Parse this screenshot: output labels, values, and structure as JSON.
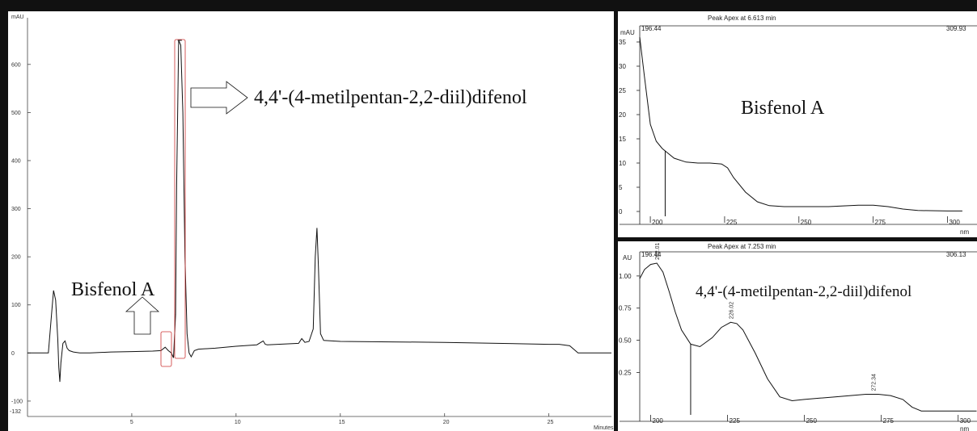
{
  "chart_data": [
    {
      "type": "line",
      "title": "",
      "ylabel": "mAU",
      "xlabel": "Minutes",
      "xlim": [
        0,
        28
      ],
      "ylim": [
        -132,
        650
      ],
      "yticks": [
        -100,
        0,
        100,
        200,
        300,
        400,
        500,
        600
      ],
      "xticks": [
        5,
        10,
        15,
        20,
        25
      ],
      "ytick_labels": [
        "-100",
        "0",
        "100",
        "200",
        "300",
        "400",
        "500",
        "600"
      ],
      "xtick_labels": [
        "5",
        "10",
        "15",
        "20",
        "25"
      ],
      "ymin_label": "-132",
      "series": [
        {
          "x": [
            0,
            1.0,
            1.15,
            1.25,
            1.35,
            1.45,
            1.5,
            1.55,
            1.6,
            1.7,
            1.8,
            1.9,
            2.0,
            2.2,
            2.5,
            3,
            4,
            5,
            6,
            6.4,
            6.6,
            6.75,
            6.9,
            7.0,
            7.1,
            7.15,
            7.25,
            7.35,
            7.45,
            7.55,
            7.65,
            7.75,
            7.85,
            8.0,
            8.2,
            9,
            10,
            11,
            11.3,
            11.4,
            11.5,
            12,
            13,
            13.15,
            13.3,
            13.5,
            13.7,
            13.8,
            13.88,
            13.95,
            14.05,
            14.2,
            15,
            20,
            25,
            25.5,
            26,
            26.4,
            28
          ],
          "y": [
            0,
            0,
            80,
            130,
            110,
            30,
            -30,
            -60,
            -20,
            20,
            25,
            10,
            5,
            2,
            0,
            0,
            2,
            3,
            4,
            5,
            12,
            5,
            0,
            -10,
            80,
            350,
            650,
            640,
            500,
            200,
            40,
            0,
            -8,
            5,
            8,
            10,
            14,
            17,
            25,
            18,
            17,
            18,
            20,
            30,
            22,
            24,
            50,
            200,
            260,
            180,
            40,
            26,
            24,
            22,
            18,
            18,
            15,
            0,
            0
          ]
        }
      ]
    },
    {
      "type": "line",
      "title": "Peak Apex at 6.613 min",
      "ylabel": "mAU",
      "xlabel": "nm",
      "xlim": [
        196.44,
        309.93
      ],
      "ylim": [
        -1,
        37
      ],
      "xlim_labels": [
        "196.44",
        "309.93"
      ],
      "yticks": [
        0,
        5,
        10,
        15,
        20,
        25,
        30,
        35
      ],
      "xticks": [
        200,
        225,
        250,
        275,
        300
      ],
      "ytick_labels": [
        "0",
        "5",
        "10",
        "15",
        "20",
        "25",
        "30",
        "35"
      ],
      "xtick_labels": [
        "200",
        "225",
        "250",
        "275",
        "300"
      ],
      "series": [
        {
          "x": [
            196.44,
            198,
            200,
            202,
            204,
            206,
            208,
            212,
            216,
            220,
            224,
            226,
            228,
            232,
            236,
            240,
            245,
            250,
            260,
            270,
            275,
            280,
            285,
            290,
            300,
            305
          ],
          "y": [
            36,
            28,
            18,
            14.5,
            13,
            12,
            11,
            10.2,
            10,
            10,
            9.8,
            9,
            7,
            4,
            2,
            1.2,
            1,
            1,
            1,
            1.3,
            1.3,
            1.0,
            0.5,
            0.2,
            0.1,
            0.1
          ]
        }
      ],
      "annotation": "Bisfenol A"
    },
    {
      "type": "line",
      "title": "Peak Apex at 7.253 min",
      "ylabel": "AU",
      "xlabel": "nm",
      "xlim": [
        196.44,
        306.13
      ],
      "ylim": [
        -0.08,
        1.15
      ],
      "xlim_labels": [
        "196.44",
        "306.13"
      ],
      "yticks": [
        0.25,
        0.5,
        0.75,
        1.0
      ],
      "xticks": [
        200,
        225,
        250,
        275,
        300
      ],
      "ytick_labels": [
        "0.25",
        "0.50",
        "0.75",
        "1.00"
      ],
      "xtick_labels": [
        "200",
        "225",
        "250",
        "275",
        "300"
      ],
      "peak_labels": [
        "202.01",
        "226.02",
        "272.34"
      ],
      "series": [
        {
          "x": [
            196.44,
            198,
            200,
            202,
            204,
            206,
            208,
            210,
            213,
            216,
            220,
            223,
            226,
            228,
            230,
            234,
            238,
            242,
            246,
            250,
            255,
            260,
            265,
            270,
            274,
            278,
            282,
            285,
            288,
            306
          ],
          "y": [
            0.98,
            1.05,
            1.09,
            1.1,
            1.03,
            0.88,
            0.72,
            0.58,
            0.47,
            0.45,
            0.52,
            0.6,
            0.64,
            0.63,
            0.58,
            0.4,
            0.2,
            0.06,
            0.03,
            0.04,
            0.05,
            0.06,
            0.07,
            0.08,
            0.08,
            0.07,
            0.04,
            -0.02,
            -0.05,
            -0.05
          ]
        }
      ],
      "annotation": "4,4'-(4-metilpentan-2,2-diil)difenol"
    }
  ],
  "annotations": {
    "main_compound": "4,4'-(4-metilpentan-2,2-diil)difenol",
    "bisfenol": "Bisfenol A"
  },
  "x_unit": "nm"
}
